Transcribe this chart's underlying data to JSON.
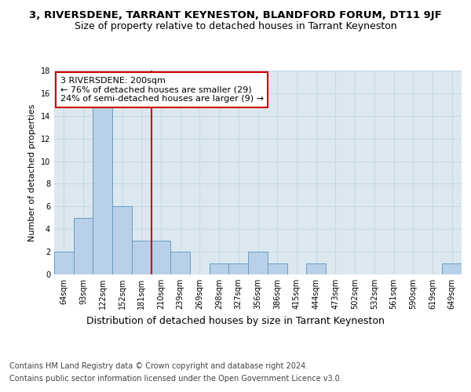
{
  "title": "3, RIVERSDENE, TARRANT KEYNESTON, BLANDFORD FORUM, DT11 9JF",
  "subtitle": "Size of property relative to detached houses in Tarrant Keyneston",
  "xlabel": "Distribution of detached houses by size in Tarrant Keyneston",
  "ylabel": "Number of detached properties",
  "categories": [
    "64sqm",
    "93sqm",
    "122sqm",
    "152sqm",
    "181sqm",
    "210sqm",
    "239sqm",
    "269sqm",
    "298sqm",
    "327sqm",
    "356sqm",
    "386sqm",
    "415sqm",
    "444sqm",
    "473sqm",
    "502sqm",
    "532sqm",
    "561sqm",
    "590sqm",
    "619sqm",
    "649sqm"
  ],
  "values": [
    2,
    5,
    15,
    6,
    3,
    3,
    2,
    0,
    1,
    1,
    2,
    1,
    0,
    1,
    0,
    0,
    0,
    0,
    0,
    0,
    1
  ],
  "bar_color": "#b8d0e8",
  "bar_edge_color": "#6a9fc0",
  "vline_x_index": 5,
  "vline_color": "#cc0000",
  "annotation_text": "3 RIVERSDENE: 200sqm\n← 76% of detached houses are smaller (29)\n24% of semi-detached houses are larger (9) →",
  "annotation_box_color": "#ffffff",
  "annotation_box_edge": "#cc0000",
  "ylim": [
    0,
    18
  ],
  "yticks": [
    0,
    2,
    4,
    6,
    8,
    10,
    12,
    14,
    16,
    18
  ],
  "grid_color": "#c8d8e8",
  "background_color": "#dce8f0",
  "footer_line1": "Contains HM Land Registry data © Crown copyright and database right 2024.",
  "footer_line2": "Contains public sector information licensed under the Open Government Licence v3.0.",
  "title_fontsize": 9.5,
  "subtitle_fontsize": 9,
  "tick_fontsize": 7,
  "ylabel_fontsize": 8,
  "xlabel_fontsize": 9,
  "footer_fontsize": 7,
  "annotation_fontsize": 8
}
